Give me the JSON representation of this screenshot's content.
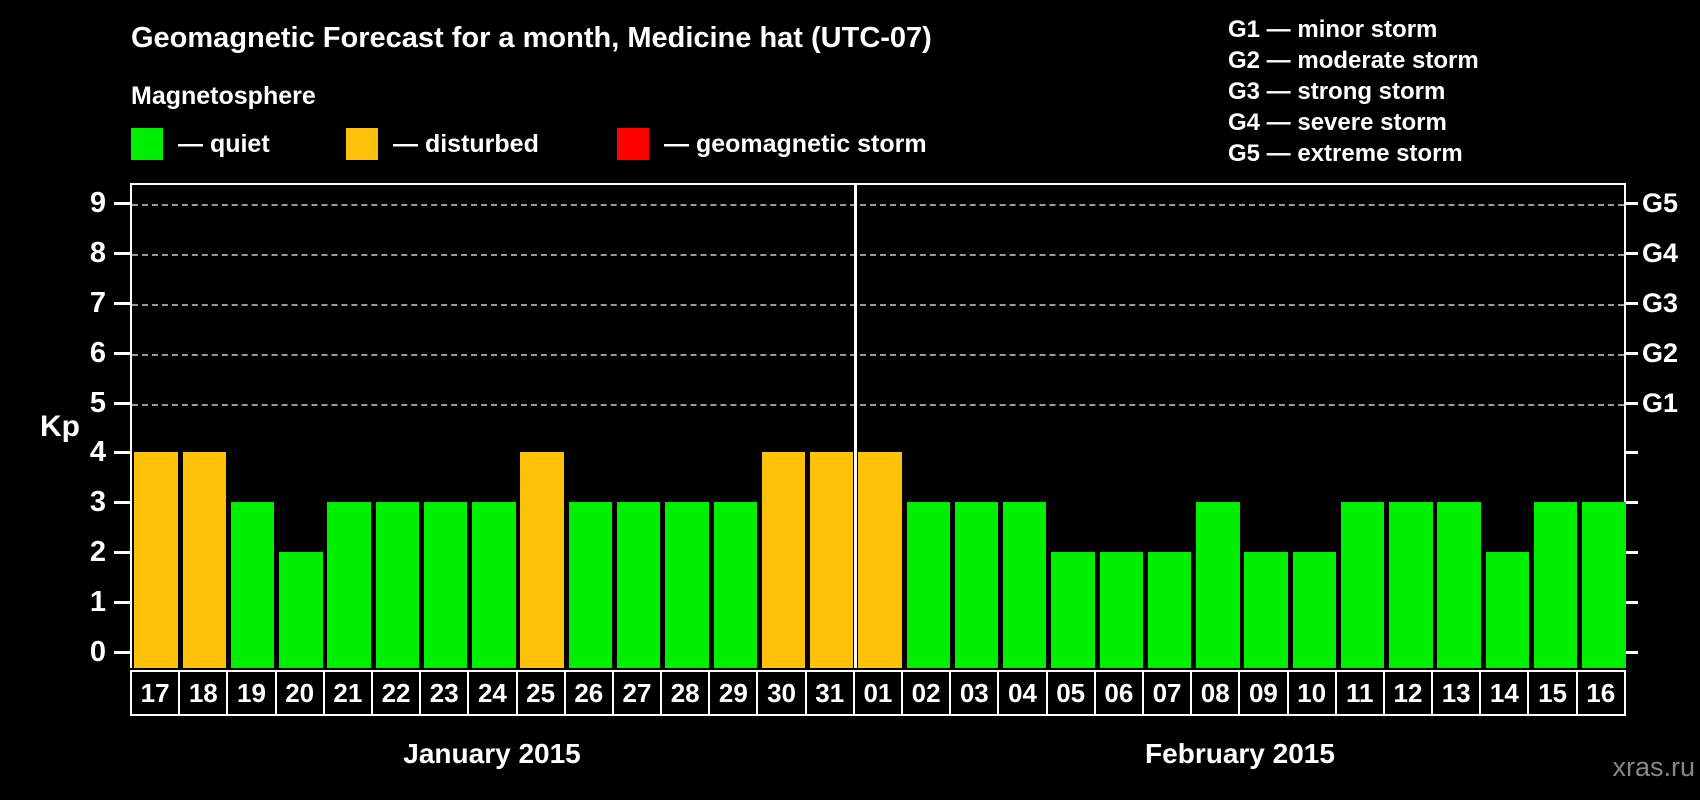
{
  "title": "Geomagnetic Forecast for a month, Medicine hat (UTC-07)",
  "subtitle": "Magnetosphere",
  "legend": [
    {
      "status": "quiet",
      "label": "— quiet",
      "color": "#00ee00"
    },
    {
      "status": "disturbed",
      "label": "— disturbed",
      "color": "#fcc108"
    },
    {
      "status": "storm",
      "label": "— geomagnetic storm",
      "color": "#ff0000"
    }
  ],
  "g_legend": [
    {
      "code": "G1",
      "desc": "minor storm"
    },
    {
      "code": "G2",
      "desc": "moderate storm"
    },
    {
      "code": "G3",
      "desc": "strong storm"
    },
    {
      "code": "G4",
      "desc": "severe storm"
    },
    {
      "code": "G5",
      "desc": "extreme storm"
    }
  ],
  "watermark": "xras.ru",
  "chart_data": {
    "type": "bar",
    "title": "Geomagnetic Forecast for a month, Medicine hat (UTC-07)",
    "ylabel": "Kp",
    "ylim": [
      0,
      9
    ],
    "yticks": [
      0,
      1,
      2,
      3,
      4,
      5,
      6,
      7,
      8,
      9
    ],
    "gridlines_at": [
      5,
      6,
      7,
      8,
      9
    ],
    "right_axis_labels": [
      {
        "kp": 5,
        "label": "G1"
      },
      {
        "kp": 6,
        "label": "G2"
      },
      {
        "kp": 7,
        "label": "G3"
      },
      {
        "kp": 8,
        "label": "G4"
      },
      {
        "kp": 9,
        "label": "G5"
      }
    ],
    "months": [
      {
        "label": "January 2015",
        "days": [
          {
            "day": "17",
            "kp": 4,
            "status": "disturbed"
          },
          {
            "day": "18",
            "kp": 4,
            "status": "disturbed"
          },
          {
            "day": "19",
            "kp": 3,
            "status": "quiet"
          },
          {
            "day": "20",
            "kp": 2,
            "status": "quiet"
          },
          {
            "day": "21",
            "kp": 3,
            "status": "quiet"
          },
          {
            "day": "22",
            "kp": 3,
            "status": "quiet"
          },
          {
            "day": "23",
            "kp": 3,
            "status": "quiet"
          },
          {
            "day": "24",
            "kp": 3,
            "status": "quiet"
          },
          {
            "day": "25",
            "kp": 4,
            "status": "disturbed"
          },
          {
            "day": "26",
            "kp": 3,
            "status": "quiet"
          },
          {
            "day": "27",
            "kp": 3,
            "status": "quiet"
          },
          {
            "day": "28",
            "kp": 3,
            "status": "quiet"
          },
          {
            "day": "29",
            "kp": 3,
            "status": "quiet"
          },
          {
            "day": "30",
            "kp": 4,
            "status": "disturbed"
          },
          {
            "day": "31",
            "kp": 4,
            "status": "disturbed"
          }
        ]
      },
      {
        "label": "February 2015",
        "days": [
          {
            "day": "01",
            "kp": 4,
            "status": "disturbed"
          },
          {
            "day": "02",
            "kp": 3,
            "status": "quiet"
          },
          {
            "day": "03",
            "kp": 3,
            "status": "quiet"
          },
          {
            "day": "04",
            "kp": 3,
            "status": "quiet"
          },
          {
            "day": "05",
            "kp": 2,
            "status": "quiet"
          },
          {
            "day": "06",
            "kp": 2,
            "status": "quiet"
          },
          {
            "day": "07",
            "kp": 2,
            "status": "quiet"
          },
          {
            "day": "08",
            "kp": 3,
            "status": "quiet"
          },
          {
            "day": "09",
            "kp": 2,
            "status": "quiet"
          },
          {
            "day": "10",
            "kp": 2,
            "status": "quiet"
          },
          {
            "day": "11",
            "kp": 3,
            "status": "quiet"
          },
          {
            "day": "12",
            "kp": 3,
            "status": "quiet"
          },
          {
            "day": "13",
            "kp": 3,
            "status": "quiet"
          },
          {
            "day": "14",
            "kp": 2,
            "status": "quiet"
          },
          {
            "day": "15",
            "kp": 3,
            "status": "quiet"
          },
          {
            "day": "16",
            "kp": 3,
            "status": "quiet"
          }
        ]
      }
    ]
  }
}
